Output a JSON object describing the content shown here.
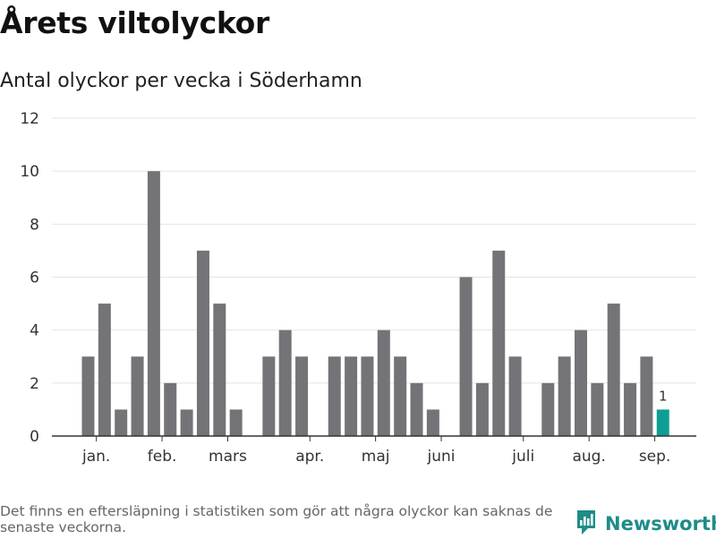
{
  "header": {
    "title": "Årets viltolyckor",
    "subtitle": "Antal olyckor per vecka i Söderhamn"
  },
  "footer": {
    "note": "Det finns en eftersläpning i statistiken som gör att några olyckor kan saknas de senaste veckorna.",
    "brand": "Newsworthy"
  },
  "colors": {
    "bar": "#747377",
    "highlight": "#0f9e93",
    "grid": "#e4e4e4",
    "axis": "#333333",
    "brand": "#1e8c88"
  },
  "icons": [
    "bar-chart-bubble-icon"
  ],
  "chart_data": {
    "type": "bar",
    "x_unit": "week",
    "ylim": [
      0,
      12
    ],
    "yticks": [
      0,
      2,
      4,
      6,
      8,
      10,
      12
    ],
    "grid": true,
    "month_labels": [
      {
        "label": "jan.",
        "week": 1.5
      },
      {
        "label": "feb.",
        "week": 5.5
      },
      {
        "label": "mars",
        "week": 9.5
      },
      {
        "label": "apr.",
        "week": 14.5
      },
      {
        "label": "maj",
        "week": 18.5
      },
      {
        "label": "juni",
        "week": 22.5
      },
      {
        "label": "juli",
        "week": 27.5
      },
      {
        "label": "aug.",
        "week": 31.5
      },
      {
        "label": "sep.",
        "week": 35.5
      }
    ],
    "weeks": [
      1,
      2,
      3,
      4,
      5,
      6,
      7,
      8,
      9,
      10,
      11,
      12,
      13,
      14,
      15,
      16,
      17,
      18,
      19,
      20,
      21,
      22,
      23,
      24,
      25,
      26,
      27,
      28,
      29,
      30,
      31,
      32,
      33,
      34,
      35,
      36
    ],
    "values": [
      3,
      5,
      1,
      3,
      10,
      2,
      1,
      7,
      5,
      1,
      0,
      3,
      4,
      3,
      0,
      3,
      3,
      3,
      4,
      3,
      2,
      1,
      0,
      6,
      2,
      7,
      3,
      0,
      2,
      3,
      4,
      2,
      5,
      2,
      3,
      1
    ],
    "highlight_index": 35,
    "data_labels": [
      {
        "index": 35,
        "text": "1"
      }
    ]
  }
}
